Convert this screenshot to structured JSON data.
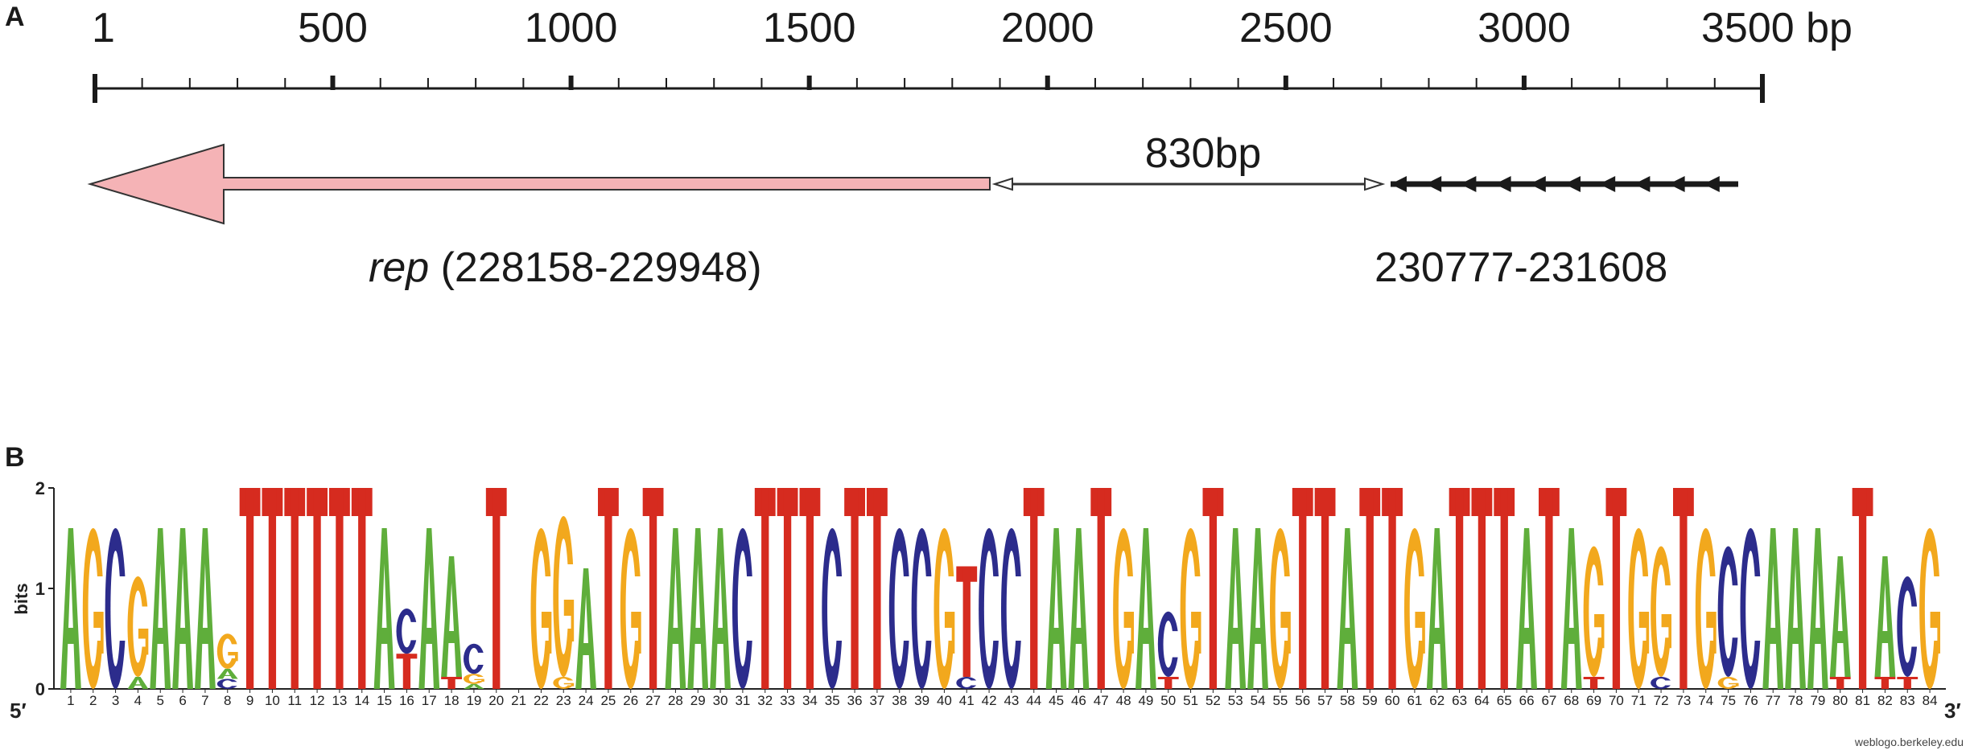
{
  "panel_a": {
    "label": "A",
    "ruler": {
      "ticks": [
        "1",
        "500",
        "1000",
        "1500",
        "2000",
        "2500",
        "3000",
        "3500 bp"
      ],
      "tick_values": [
        1,
        500,
        1000,
        1500,
        2000,
        2500,
        3000,
        3500
      ],
      "range": [
        1,
        3500
      ]
    },
    "rep_gene": {
      "name": "rep",
      "coords": "(228158-229948)"
    },
    "spacer_label": "830bp",
    "repeat_region_label": "230777-231608",
    "repeat_arrow_count": 10
  },
  "panel_b": {
    "label": "B",
    "y_axis_label": "bits",
    "y_ticks": [
      "0",
      "1",
      "2"
    ],
    "five_prime": "5′",
    "three_prime": "3′",
    "credit": "weblogo.berkeley.edu",
    "colors": {
      "A": "#5fae3b",
      "C": "#2c2c8c",
      "G": "#f2a81d",
      "T": "#d62b1f"
    },
    "logo_columns": [
      [
        [
          "A",
          1.6
        ]
      ],
      [
        [
          "G",
          1.6
        ]
      ],
      [
        [
          "C",
          1.6
        ]
      ],
      [
        [
          "A",
          0.12
        ],
        [
          "G",
          1.0
        ]
      ],
      [
        [
          "A",
          1.6
        ]
      ],
      [
        [
          "A",
          1.6
        ]
      ],
      [
        [
          "A",
          1.6
        ]
      ],
      [
        [
          "C",
          0.1
        ],
        [
          "A",
          0.1
        ],
        [
          "G",
          0.35
        ]
      ],
      [
        [
          "T",
          2.0
        ]
      ],
      [
        [
          "T",
          2.0
        ]
      ],
      [
        [
          "T",
          2.0
        ]
      ],
      [
        [
          "T",
          2.0
        ]
      ],
      [
        [
          "T",
          2.0
        ]
      ],
      [
        [
          "T",
          2.0
        ]
      ],
      [
        [
          "A",
          1.6
        ]
      ],
      [
        [
          "T",
          0.35
        ],
        [
          "C",
          0.45
        ]
      ],
      [
        [
          "A",
          1.6
        ]
      ],
      [
        [
          "T",
          0.12
        ],
        [
          "A",
          1.2
        ]
      ],
      [
        [
          "A",
          0.05
        ],
        [
          "G",
          0.1
        ],
        [
          "C",
          0.3
        ]
      ],
      [
        [
          "T",
          2.0
        ]
      ],
      [],
      [
        [
          "G",
          1.6
        ]
      ],
      [
        [
          "G",
          0.12
        ],
        [
          "G",
          1.6
        ]
      ],
      [
        [
          "A",
          1.2
        ]
      ],
      [
        [
          "T",
          2.0
        ]
      ],
      [
        [
          "G",
          1.6
        ]
      ],
      [
        [
          "T",
          2.0
        ]
      ],
      [
        [
          "A",
          1.6
        ]
      ],
      [
        [
          "A",
          1.6
        ]
      ],
      [
        [
          "A",
          1.6
        ]
      ],
      [
        [
          "C",
          1.6
        ]
      ],
      [
        [
          "T",
          2.0
        ]
      ],
      [
        [
          "T",
          2.0
        ]
      ],
      [
        [
          "T",
          2.0
        ]
      ],
      [
        [
          "C",
          1.6
        ]
      ],
      [
        [
          "T",
          2.0
        ]
      ],
      [
        [
          "T",
          2.0
        ]
      ],
      [
        [
          "C",
          1.6
        ]
      ],
      [
        [
          "C",
          1.6
        ]
      ],
      [
        [
          "G",
          1.6
        ]
      ],
      [
        [
          "C",
          0.12
        ],
        [
          "T",
          1.1
        ]
      ],
      [
        [
          "C",
          1.6
        ]
      ],
      [
        [
          "C",
          1.6
        ]
      ],
      [
        [
          "T",
          2.0
        ]
      ],
      [
        [
          "A",
          1.6
        ]
      ],
      [
        [
          "A",
          1.6
        ]
      ],
      [
        [
          "T",
          2.0
        ]
      ],
      [
        [
          "G",
          1.6
        ]
      ],
      [
        [
          "A",
          1.6
        ]
      ],
      [
        [
          "T",
          0.12
        ],
        [
          "C",
          0.65
        ]
      ],
      [
        [
          "G",
          1.6
        ]
      ],
      [
        [
          "T",
          2.0
        ]
      ],
      [
        [
          "A",
          1.6
        ]
      ],
      [
        [
          "A",
          1.6
        ]
      ],
      [
        [
          "G",
          1.6
        ]
      ],
      [
        [
          "T",
          2.0
        ]
      ],
      [
        [
          "T",
          2.0
        ]
      ],
      [
        [
          "A",
          1.6
        ]
      ],
      [
        [
          "T",
          2.0
        ]
      ],
      [
        [
          "T",
          2.0
        ]
      ],
      [
        [
          "G",
          1.6
        ]
      ],
      [
        [
          "A",
          1.6
        ]
      ],
      [
        [
          "T",
          2.0
        ]
      ],
      [
        [
          "T",
          2.0
        ]
      ],
      [
        [
          "T",
          2.0
        ]
      ],
      [
        [
          "A",
          1.6
        ]
      ],
      [
        [
          "T",
          2.0
        ]
      ],
      [
        [
          "A",
          1.6
        ]
      ],
      [
        [
          "T",
          0.12
        ],
        [
          "G",
          1.3
        ]
      ],
      [
        [
          "T",
          2.0
        ]
      ],
      [
        [
          "G",
          1.6
        ]
      ],
      [
        [
          "C",
          0.12
        ],
        [
          "G",
          1.3
        ]
      ],
      [
        [
          "T",
          2.0
        ]
      ],
      [
        [
          "G",
          1.6
        ]
      ],
      [
        [
          "G",
          0.12
        ],
        [
          "C",
          1.3
        ]
      ],
      [
        [
          "C",
          1.6
        ]
      ],
      [
        [
          "A",
          1.6
        ]
      ],
      [
        [
          "A",
          1.6
        ]
      ],
      [
        [
          "A",
          1.6
        ]
      ],
      [
        [
          "T",
          0.12
        ],
        [
          "A",
          1.2
        ]
      ],
      [
        [
          "T",
          2.0
        ]
      ],
      [
        [
          "T",
          0.12
        ],
        [
          "A",
          1.2
        ]
      ],
      [
        [
          "T",
          0.12
        ],
        [
          "C",
          1.0
        ]
      ],
      [
        [
          "G",
          1.6
        ]
      ]
    ]
  }
}
